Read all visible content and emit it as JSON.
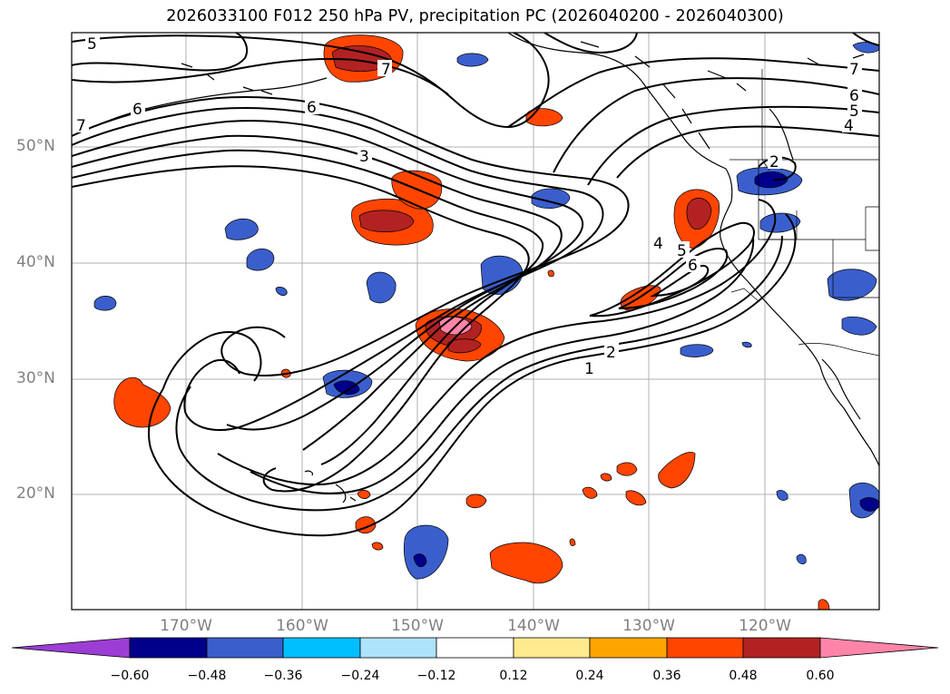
{
  "title": "2026033100 F012 250 hPa PV, precipitation PC (2026040200 - 2026040300)",
  "lat_labels": [
    "50°N",
    "40°N",
    "30°N",
    "20°N"
  ],
  "lon_labels": [
    "170°W",
    "160°W",
    "150°W",
    "140°W",
    "130°W",
    "120°W"
  ],
  "contour_labels": [
    "5",
    "7",
    "7",
    "6",
    "6",
    "3",
    "2",
    "7",
    "6",
    "5",
    "4",
    "4",
    "5",
    "6",
    "1",
    "2"
  ],
  "colorbar": {
    "ticks": [
      "−0.60",
      "−0.48",
      "−0.36",
      "−0.24",
      "−0.12",
      "0.12",
      "0.24",
      "0.36",
      "0.48",
      "0.60"
    ],
    "colors": [
      "#9c3dd6",
      "#00008b",
      "#3a5fcd",
      "#00bfff",
      "#ade3fb",
      "#ffffff",
      "#ffea8f",
      "#ffa500",
      "#ff4500",
      "#b22222",
      "#ff85a8"
    ]
  },
  "palette": {
    "grid": "#b0b0b0",
    "contour": "#000000",
    "coast": "#000000"
  }
}
